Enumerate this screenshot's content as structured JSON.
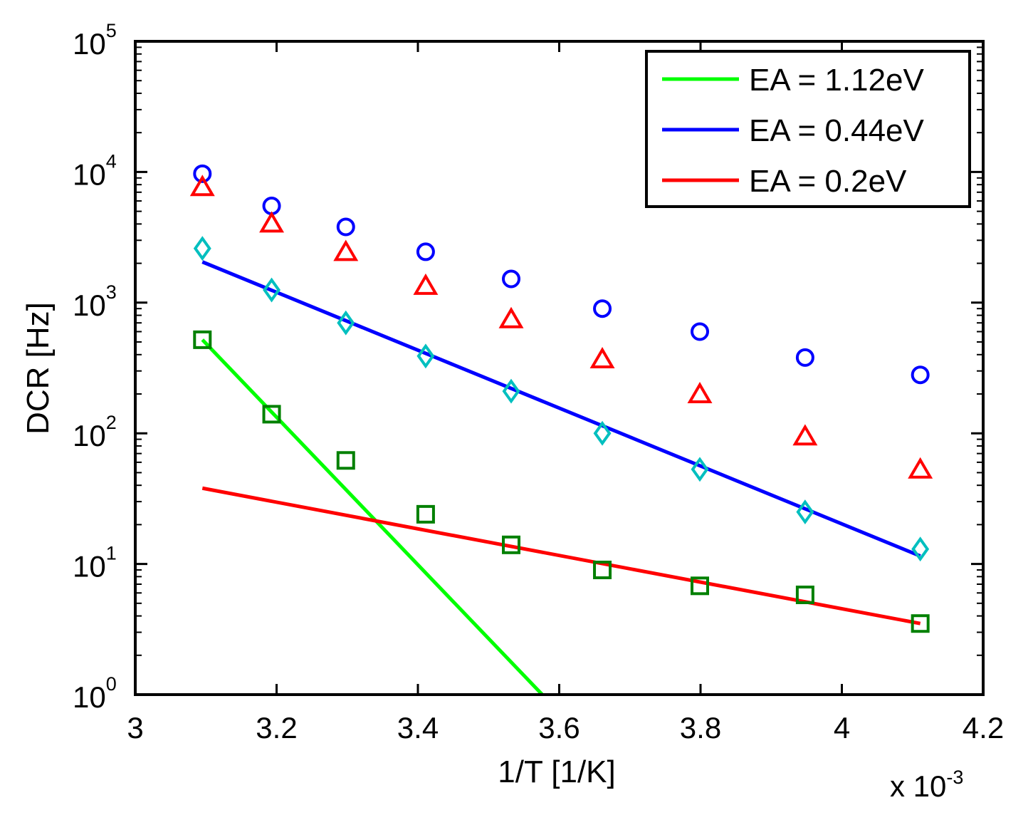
{
  "chart_data": {
    "type": "scatter",
    "xlabel": "1/T [1/K]",
    "ylabel": "DCR [Hz]",
    "x_multiplier_label": "x 10",
    "x_multiplier_exponent": "-3",
    "xlim": [
      3.0,
      4.2
    ],
    "ylim": [
      1,
      100000
    ],
    "yscale": "log",
    "grid": false,
    "legend_location": "top-right",
    "x_ticks": [
      {
        "value": 3.0,
        "label": "3"
      },
      {
        "value": 3.2,
        "label": "3.2"
      },
      {
        "value": 3.4,
        "label": "3.4"
      },
      {
        "value": 3.6,
        "label": "3.6"
      },
      {
        "value": 3.8,
        "label": "3.8"
      },
      {
        "value": 4.0,
        "label": "4"
      },
      {
        "value": 4.2,
        "label": "4.2"
      }
    ],
    "y_ticks": [
      {
        "value": 1,
        "base": "10",
        "exp": "0"
      },
      {
        "value": 10,
        "base": "10",
        "exp": "1"
      },
      {
        "value": 100,
        "base": "10",
        "exp": "2"
      },
      {
        "value": 1000,
        "base": "10",
        "exp": "3"
      },
      {
        "value": 10000,
        "base": "10",
        "exp": "4"
      },
      {
        "value": 100000,
        "base": "10",
        "exp": "5"
      }
    ],
    "scatter_series": [
      {
        "name": "circles",
        "marker": "circle",
        "color": "#0000ff",
        "x": [
          3.095,
          3.193,
          3.298,
          3.411,
          3.532,
          3.661,
          3.799,
          3.948,
          4.111
        ],
        "y": [
          9700,
          5500,
          3800,
          2450,
          1520,
          900,
          600,
          380,
          280
        ]
      },
      {
        "name": "triangles",
        "marker": "triangle",
        "color": "#ff0000",
        "x": [
          3.095,
          3.193,
          3.298,
          3.411,
          3.532,
          3.661,
          3.799,
          3.948,
          4.111
        ],
        "y": [
          7700,
          4050,
          2450,
          1350,
          750,
          370,
          200,
          95,
          53
        ]
      },
      {
        "name": "diamonds",
        "marker": "diamond",
        "color": "#00bfbf",
        "x": [
          3.095,
          3.193,
          3.298,
          3.411,
          3.532,
          3.661,
          3.799,
          3.948,
          4.111
        ],
        "y": [
          2600,
          1250,
          700,
          390,
          210,
          100,
          53,
          25,
          13
        ]
      },
      {
        "name": "squares",
        "marker": "square",
        "color": "#008000",
        "x": [
          3.095,
          3.193,
          3.298,
          3.411,
          3.532,
          3.661,
          3.799,
          3.948,
          4.111
        ],
        "y": [
          520,
          140,
          62,
          24,
          14,
          9.0,
          6.8,
          5.8,
          3.5
        ]
      }
    ],
    "line_series": [
      {
        "name": "EA = 1.12eV",
        "color": "#00ff00",
        "x": [
          3.095,
          3.576
        ],
        "y": [
          520,
          1.0
        ]
      },
      {
        "name": "EA = 0.44eV",
        "color": "#0000ff",
        "x": [
          3.095,
          4.111
        ],
        "y": [
          2050,
          11.5
        ]
      },
      {
        "name": "EA = 0.2eV",
        "color": "#ff0000",
        "x": [
          3.095,
          4.111
        ],
        "y": [
          38,
          3.5
        ]
      }
    ]
  }
}
